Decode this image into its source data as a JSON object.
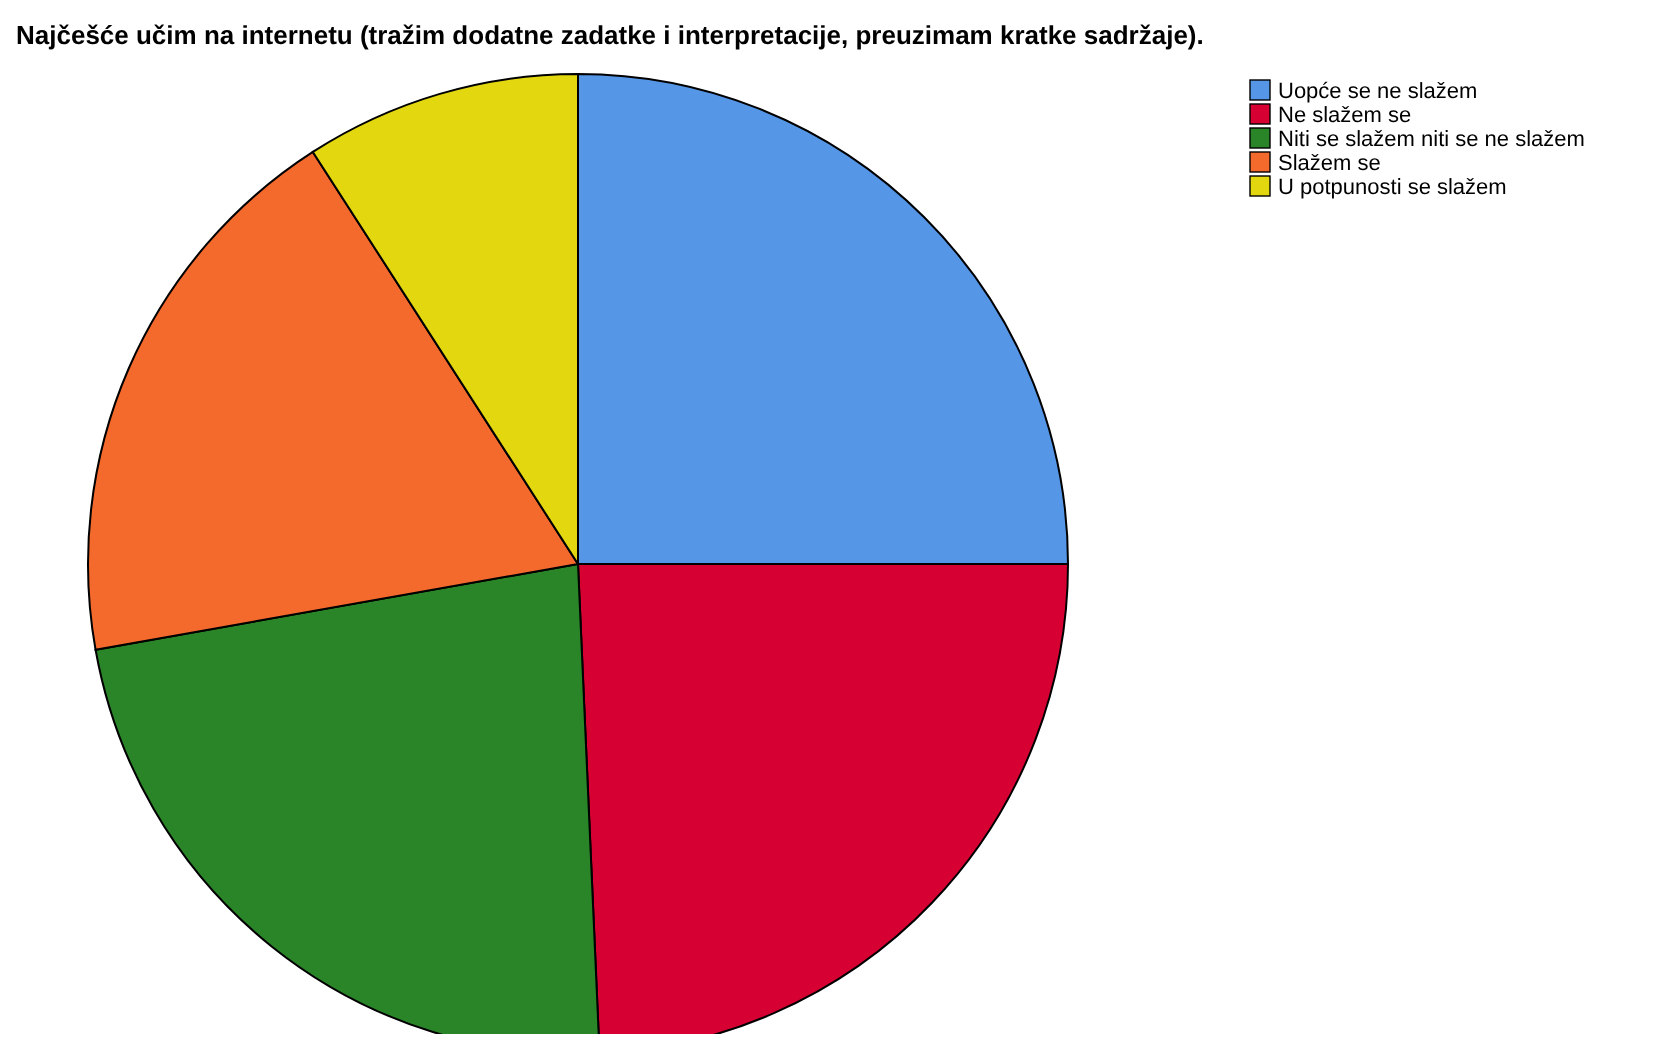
{
  "chart_data": {
    "type": "pie",
    "title": "Najčešće učim na internetu (tražim dodatne zadatke i interpretacije, preuzimam kratke sadržaje).",
    "categories": [
      "Uopće se ne slažem",
      "Ne slažem se",
      "Niti se slažem niti se ne slažem",
      "Slažem se",
      "U potpunosti se slažem"
    ],
    "values": [
      25.0,
      24.3,
      22.9,
      18.7,
      9.1
    ],
    "colors": [
      "#5596e6",
      "#d70033",
      "#2a8428",
      "#f4692c",
      "#e3d80f"
    ],
    "legend": "top right"
  }
}
